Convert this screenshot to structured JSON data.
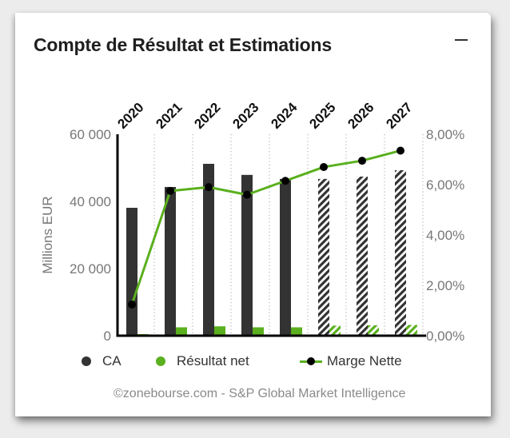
{
  "card": {
    "title": "Compte de Résultat et Estimations",
    "collapse_icon": "minus-icon"
  },
  "legend": {
    "items": [
      {
        "label": "CA",
        "color": "#333333",
        "marker": "dot"
      },
      {
        "label": "Résultat net",
        "color": "#5ab01e",
        "marker": "dot"
      },
      {
        "label": "Marge Nette",
        "color": "#5ab01e",
        "marker": "line-with-point"
      }
    ]
  },
  "credit": "©zonebourse.com - S&P Global Market Intelligence",
  "axes": {
    "left_label": "Millions EUR",
    "left_ticks": [
      "0",
      "20 000",
      "40 000",
      "60 000"
    ],
    "right_ticks": [
      "0,00%",
      "2,00%",
      "4,00%",
      "6,00%",
      "8,00%"
    ],
    "x_ticks": [
      "2020",
      "2021",
      "2022",
      "2023",
      "2024",
      "2025",
      "2026",
      "2027"
    ]
  },
  "colors": {
    "ca": "#333333",
    "net": "#5ab01e",
    "marge_line": "#5ab01e",
    "marge_point": "#000000",
    "tick_text": "#777777"
  },
  "chart_data": {
    "type": "bar",
    "title": "Compte de Résultat et Estimations",
    "categories": [
      "2020",
      "2021",
      "2022",
      "2023",
      "2024",
      "2025",
      "2026",
      "2027"
    ],
    "estimated_from": "2025",
    "series": [
      {
        "name": "CA",
        "type": "bar",
        "axis": "left",
        "values": [
          38100,
          44300,
          51200,
          47900,
          46700,
          46700,
          47400,
          49300
        ]
      },
      {
        "name": "Résultat net",
        "type": "bar",
        "axis": "left",
        "values": [
          470,
          2500,
          2800,
          2500,
          2500,
          3000,
          3100,
          3200
        ]
      },
      {
        "name": "Marge Nette",
        "type": "line",
        "axis": "right",
        "unit": "%",
        "values": [
          1.24,
          5.75,
          5.9,
          5.6,
          6.15,
          6.7,
          6.95,
          7.35
        ]
      }
    ],
    "xlabel": "",
    "ylabel": "Millions EUR",
    "ylim": [
      0,
      60000
    ],
    "y2label": "",
    "y2lim": [
      0,
      8
    ],
    "grid": "vertical dotted",
    "legend_position": "bottom"
  }
}
